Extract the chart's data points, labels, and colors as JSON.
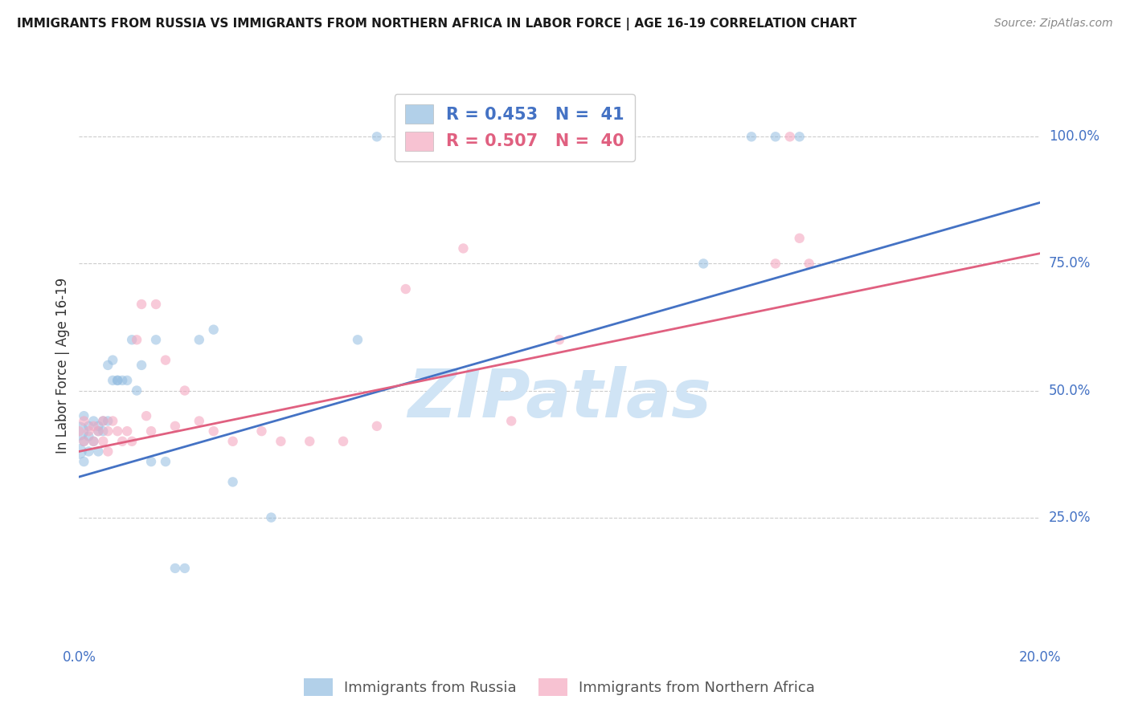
{
  "title": "IMMIGRANTS FROM RUSSIA VS IMMIGRANTS FROM NORTHERN AFRICA IN LABOR FORCE | AGE 16-19 CORRELATION CHART",
  "source": "Source: ZipAtlas.com",
  "ylabel": "In Labor Force | Age 16-19",
  "legend_russia": "R = 0.453   N =  41",
  "legend_africa": "R = 0.507   N =  40",
  "legend_label_russia": "Immigrants from Russia",
  "legend_label_africa": "Immigrants from Northern Africa",
  "color_russia": "#92bce0",
  "color_africa": "#f4a8c0",
  "color_russia_line": "#4472C4",
  "color_africa_line": "#E06080",
  "color_axis_text": "#4472C4",
  "color_watermark": "#d0e4f5",
  "watermark_text": "ZIPatlas",
  "background_color": "#ffffff",
  "grid_color": "#cccccc",
  "xlim": [
    0.0,
    0.2
  ],
  "ylim": [
    0.0,
    1.1
  ],
  "yticks": [
    0.25,
    0.5,
    0.75,
    1.0
  ],
  "ytick_labels": [
    "25.0%",
    "50.0%",
    "75.0%",
    "100.0%"
  ],
  "russia_x": [
    0.0,
    0.0,
    0.001,
    0.001,
    0.001,
    0.002,
    0.002,
    0.002,
    0.003,
    0.003,
    0.004,
    0.004,
    0.004,
    0.005,
    0.005,
    0.006,
    0.006,
    0.007,
    0.007,
    0.008,
    0.008,
    0.009,
    0.01,
    0.011,
    0.012,
    0.013,
    0.015,
    0.016,
    0.018,
    0.02,
    0.022,
    0.025,
    0.028,
    0.032,
    0.04,
    0.058,
    0.062,
    0.13,
    0.14,
    0.145,
    0.15
  ],
  "russia_y": [
    0.42,
    0.38,
    0.45,
    0.4,
    0.36,
    0.43,
    0.41,
    0.38,
    0.44,
    0.4,
    0.43,
    0.42,
    0.38,
    0.44,
    0.42,
    0.55,
    0.44,
    0.56,
    0.52,
    0.52,
    0.52,
    0.52,
    0.52,
    0.6,
    0.5,
    0.55,
    0.36,
    0.6,
    0.36,
    0.15,
    0.15,
    0.6,
    0.62,
    0.32,
    0.25,
    0.6,
    1.0,
    0.75,
    1.0,
    1.0,
    1.0
  ],
  "russia_sizes": [
    280,
    180,
    80,
    80,
    80,
    80,
    80,
    80,
    80,
    80,
    80,
    80,
    80,
    80,
    80,
    80,
    80,
    80,
    80,
    80,
    80,
    80,
    80,
    80,
    80,
    80,
    80,
    80,
    80,
    80,
    80,
    80,
    80,
    80,
    80,
    80,
    80,
    80,
    80,
    80,
    80
  ],
  "africa_x": [
    0.0,
    0.001,
    0.001,
    0.002,
    0.003,
    0.003,
    0.004,
    0.005,
    0.005,
    0.006,
    0.006,
    0.007,
    0.008,
    0.009,
    0.01,
    0.011,
    0.012,
    0.013,
    0.014,
    0.015,
    0.016,
    0.018,
    0.02,
    0.022,
    0.025,
    0.028,
    0.032,
    0.038,
    0.042,
    0.048,
    0.055,
    0.062,
    0.068,
    0.08,
    0.09,
    0.1,
    0.145,
    0.148,
    0.15,
    0.152
  ],
  "africa_y": [
    0.42,
    0.4,
    0.44,
    0.42,
    0.4,
    0.43,
    0.42,
    0.4,
    0.44,
    0.42,
    0.38,
    0.44,
    0.42,
    0.4,
    0.42,
    0.4,
    0.6,
    0.67,
    0.45,
    0.42,
    0.67,
    0.56,
    0.43,
    0.5,
    0.44,
    0.42,
    0.4,
    0.42,
    0.4,
    0.4,
    0.4,
    0.43,
    0.7,
    0.78,
    0.44,
    0.6,
    0.75,
    1.0,
    0.8,
    0.75
  ],
  "africa_sizes": [
    80,
    80,
    80,
    80,
    80,
    80,
    80,
    80,
    80,
    80,
    80,
    80,
    80,
    80,
    80,
    80,
    80,
    80,
    80,
    80,
    80,
    80,
    80,
    80,
    80,
    80,
    80,
    80,
    80,
    80,
    80,
    80,
    80,
    80,
    80,
    80,
    80,
    80,
    80,
    80
  ],
  "russia_line_x0": 0.0,
  "russia_line_y0": 0.33,
  "russia_line_x1": 0.2,
  "russia_line_y1": 0.87,
  "africa_line_x0": 0.0,
  "africa_line_y0": 0.38,
  "africa_line_x1": 0.2,
  "africa_line_y1": 0.77
}
